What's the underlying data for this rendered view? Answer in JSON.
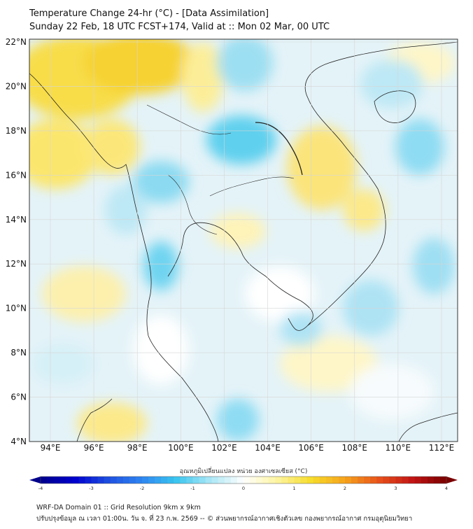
{
  "title": {
    "line1": "Temperature Change 24-hr (°C) - [Data Assimilation]",
    "line2": "Sunday 22 Feb, 18 UTC FCST+174, Valid at :: Mon 02 Mar, 00 UTC"
  },
  "map": {
    "lat_labels": [
      "22°N",
      "20°N",
      "18°N",
      "16°N",
      "14°N",
      "12°N",
      "10°N",
      "8°N",
      "6°N",
      "4°N"
    ],
    "lon_labels": [
      "94°E",
      "96°E",
      "98°E",
      "100°E",
      "102°E",
      "104°E",
      "106°E",
      "108°E",
      "110°E",
      "112°E"
    ]
  },
  "colorbar": {
    "label": "อุณหภูมิเปลี่ยนแปลง หน่วย องศาเซลเซียส (°C)",
    "ticks": [
      "-4",
      "-3",
      "-2",
      "-1",
      "0",
      "1",
      "2",
      "3",
      "4"
    ],
    "min": -4,
    "max": 4,
    "colors": [
      "#00008b",
      "#0000cd",
      "#1e4fe0",
      "#2f86f0",
      "#39c5ef",
      "#a8e6f5",
      "#ffffff",
      "#fdf4a0",
      "#f7dc2a",
      "#f6a31c",
      "#e8521b",
      "#c11414",
      "#7a0000"
    ]
  },
  "footer": {
    "line1": "WRF-DA Domain 01 :: Grid Resolution 9km x 9km",
    "line2": "ปรับปรุงข้อมูล ณ เวลา 01:00น. วัน จ. ที่ 23 ก.พ. 2569 -- © ส่วนพยากรณ์อากาศเชิงตัวเลข กองพยากรณ์อากาศ กรมอุตุนิยมวิทยา"
  }
}
